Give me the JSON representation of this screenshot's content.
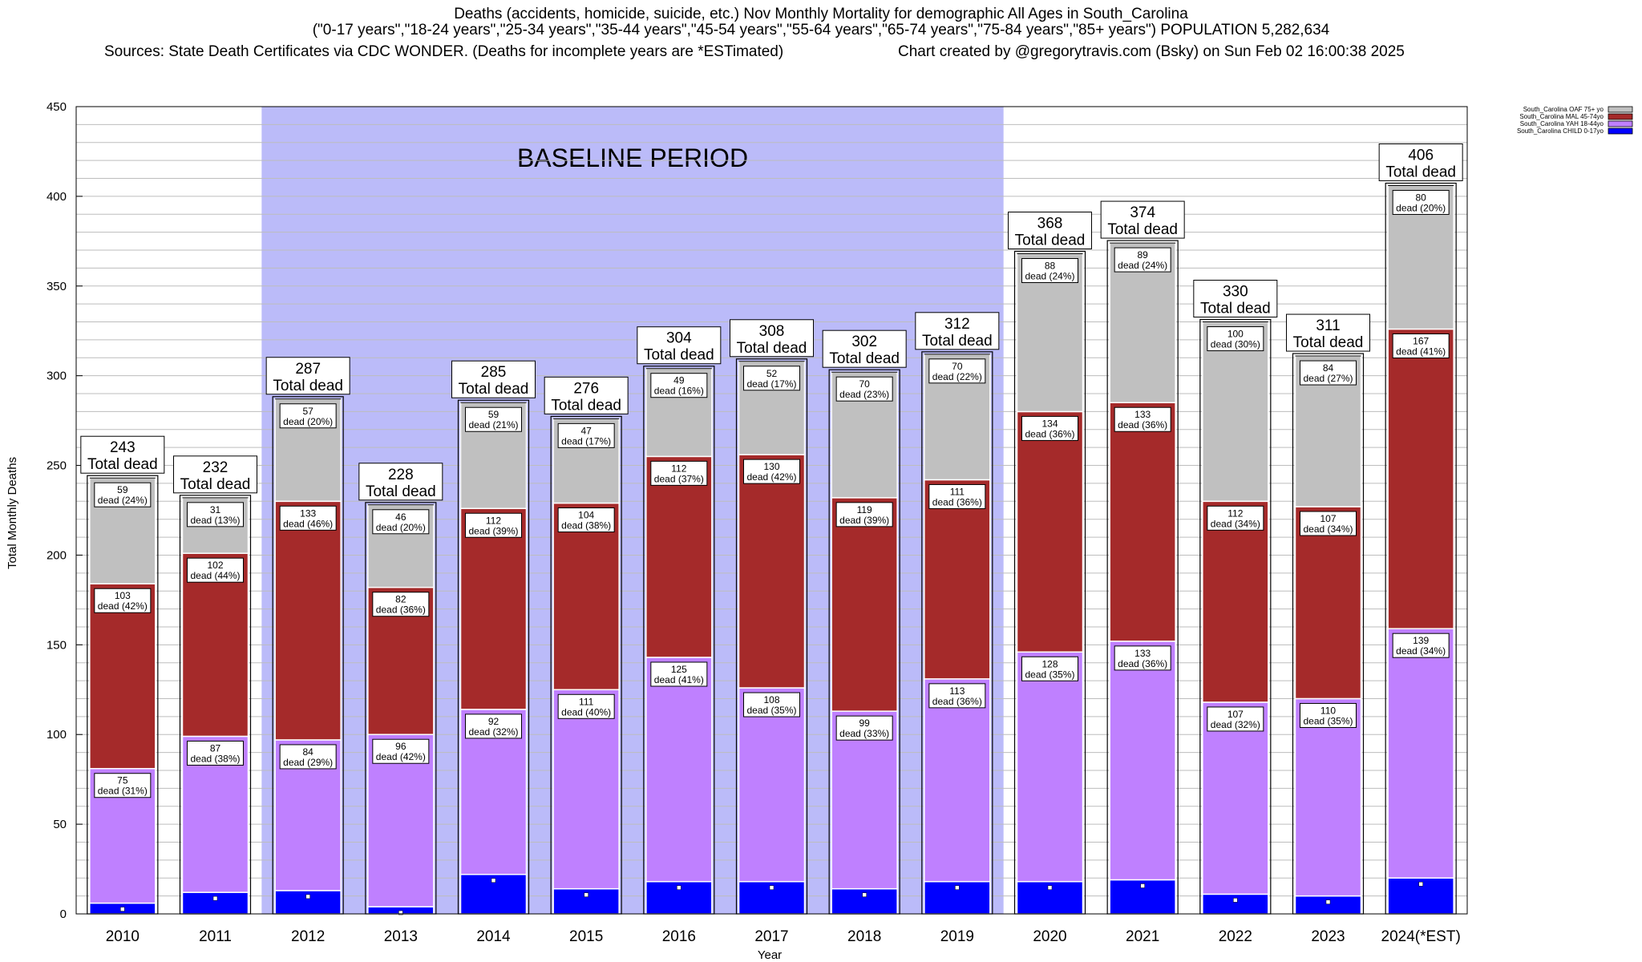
{
  "title": {
    "line1": "Deaths (accidents, homicide, suicide, etc.) Nov Monthly Mortality for demographic All Ages in South_Carolina",
    "line2": "(\"0-17 years\",\"18-24 years\",\"25-34 years\",\"35-44 years\",\"45-54 years\",\"55-64 years\",\"65-74 years\",\"75-84 years\",\"85+ years\") POPULATION 5,282,634",
    "sources": "Sources: State Death Certificates via CDC WONDER. (Deaths for incomplete years are *ESTimated)",
    "credit": "Chart created by @gregorytravis.com (Bsky) on Sun Feb 02 16:00:38 2025"
  },
  "chart_data": {
    "type": "bar",
    "stacked": true,
    "xlabel": "Year",
    "ylabel": "Total Monthly Deaths",
    "ylim": [
      0,
      450
    ],
    "yticks": [
      0,
      50,
      100,
      150,
      200,
      250,
      300,
      350,
      400,
      450
    ],
    "grid": true,
    "legend_position": "top-right",
    "baseline_label": "BASELINE PERIOD",
    "baseline_categories": [
      "2012",
      "2019"
    ],
    "total_label_suffix": "Total dead",
    "segment_label_prefix": "dead",
    "categories": [
      "2010",
      "2011",
      "2012",
      "2013",
      "2014",
      "2015",
      "2016",
      "2017",
      "2018",
      "2019",
      "2020",
      "2021",
      "2022",
      "2023",
      "2024(*EST)"
    ],
    "series": [
      {
        "name": "South_Carolina CHILD 0-17yo",
        "color": "#0000ff",
        "values": [
          6,
          12,
          13,
          4,
          22,
          14,
          18,
          18,
          14,
          18,
          18,
          19,
          11,
          10,
          20
        ],
        "labeled": false
      },
      {
        "name": "South_Carolina YAH 18-44yo",
        "color": "#bf80ff",
        "values": [
          75,
          87,
          84,
          96,
          92,
          111,
          125,
          108,
          99,
          113,
          128,
          133,
          107,
          110,
          139
        ],
        "pct": [
          31,
          38,
          29,
          42,
          32,
          40,
          41,
          35,
          33,
          36,
          35,
          36,
          32,
          35,
          34
        ],
        "labeled": true
      },
      {
        "name": "South_Carolina MAL 45-74yo",
        "color": "#a52a2a",
        "values": [
          103,
          102,
          133,
          82,
          112,
          104,
          112,
          130,
          119,
          111,
          134,
          133,
          112,
          107,
          167
        ],
        "pct": [
          42,
          44,
          46,
          36,
          39,
          38,
          37,
          42,
          39,
          36,
          36,
          36,
          34,
          34,
          41
        ],
        "labeled": true
      },
      {
        "name": "South_Carolina OAF 75+ yo",
        "color": "#c0c0c0",
        "values": [
          59,
          31,
          57,
          46,
          59,
          47,
          49,
          52,
          70,
          70,
          88,
          89,
          100,
          84,
          80
        ],
        "pct": [
          24,
          13,
          20,
          20,
          21,
          17,
          16,
          17,
          23,
          22,
          24,
          24,
          30,
          27,
          20
        ],
        "labeled": true
      }
    ],
    "totals": [
      243,
      232,
      287,
      228,
      285,
      276,
      304,
      308,
      302,
      312,
      368,
      374,
      330,
      311,
      406
    ]
  }
}
